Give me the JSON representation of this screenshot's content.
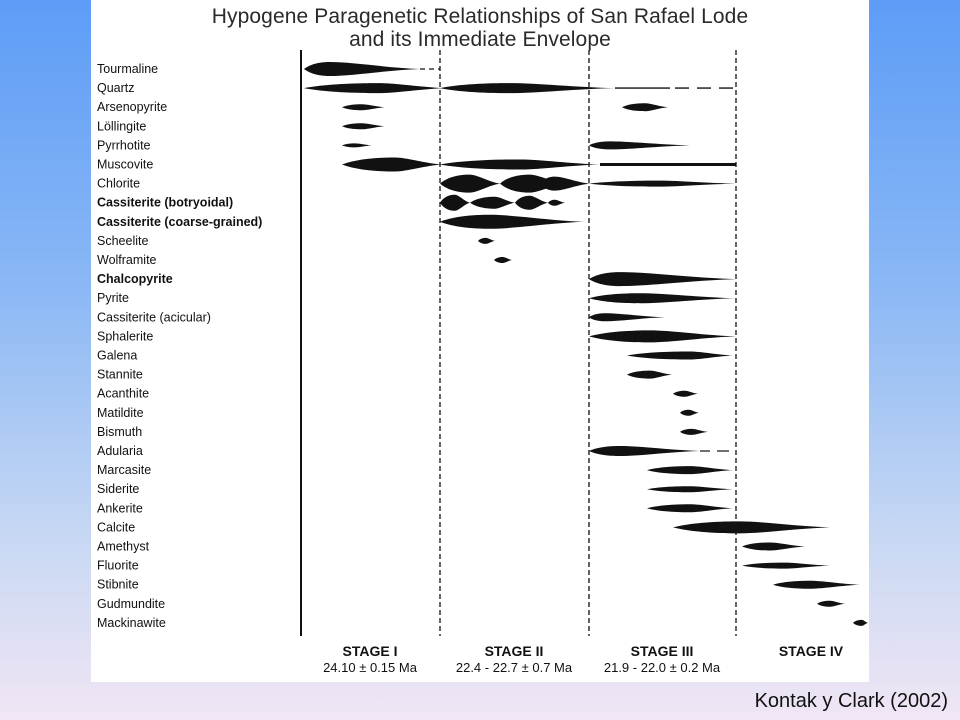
{
  "slide": {
    "title_line1": "Hypogene Paragenetic Relationships of San Rafael Lode",
    "title_line2": "and its Immediate Envelope",
    "citation": "Kontak y Clark (2002)"
  },
  "stages": [
    {
      "name": "STAGE I",
      "age": "24.10 ± 0.15 Ma"
    },
    {
      "name": "STAGE II",
      "age": "22.4 - 22.7 ± 0.7 Ma"
    },
    {
      "name": "STAGE III",
      "age": "21.9 - 22.0 ± 0.2 Ma"
    },
    {
      "name": "STAGE IV",
      "age": ""
    }
  ],
  "minerals": [
    {
      "name": "Tourmaline",
      "bold": false
    },
    {
      "name": "Quartz",
      "bold": false
    },
    {
      "name": "Arsenopyrite",
      "bold": false
    },
    {
      "name": "Löllingite",
      "bold": false
    },
    {
      "name": "Pyrrhotite",
      "bold": false
    },
    {
      "name": "Muscovite",
      "bold": false
    },
    {
      "name": "Chlorite",
      "bold": false
    },
    {
      "name": "Cassiterite (botryoidal)",
      "bold": true
    },
    {
      "name": "Cassiterite (coarse-grained)",
      "bold": true
    },
    {
      "name": "Scheelite",
      "bold": false
    },
    {
      "name": "Wolframite",
      "bold": false
    },
    {
      "name": "Chalcopyrite",
      "bold": true
    },
    {
      "name": "Pyrite",
      "bold": false
    },
    {
      "name": "Cassiterite (acicular)",
      "bold": false
    },
    {
      "name": "Sphalerite",
      "bold": false
    },
    {
      "name": "Galena",
      "bold": false
    },
    {
      "name": "Stannite",
      "bold": false
    },
    {
      "name": "Acanthite",
      "bold": false
    },
    {
      "name": "Matildite",
      "bold": false
    },
    {
      "name": "Bismuth",
      "bold": false
    },
    {
      "name": "Adularia",
      "bold": false
    },
    {
      "name": "Marcasite",
      "bold": false
    },
    {
      "name": "Siderite",
      "bold": false
    },
    {
      "name": "Ankerite",
      "bold": false
    },
    {
      "name": "Calcite",
      "bold": false
    },
    {
      "name": "Amethyst",
      "bold": false
    },
    {
      "name": "Fluorite",
      "bold": false
    },
    {
      "name": "Stibnite",
      "bold": false
    },
    {
      "name": "Gudmundite",
      "bold": false
    },
    {
      "name": "Mackinawite",
      "bold": false
    }
  ]
}
